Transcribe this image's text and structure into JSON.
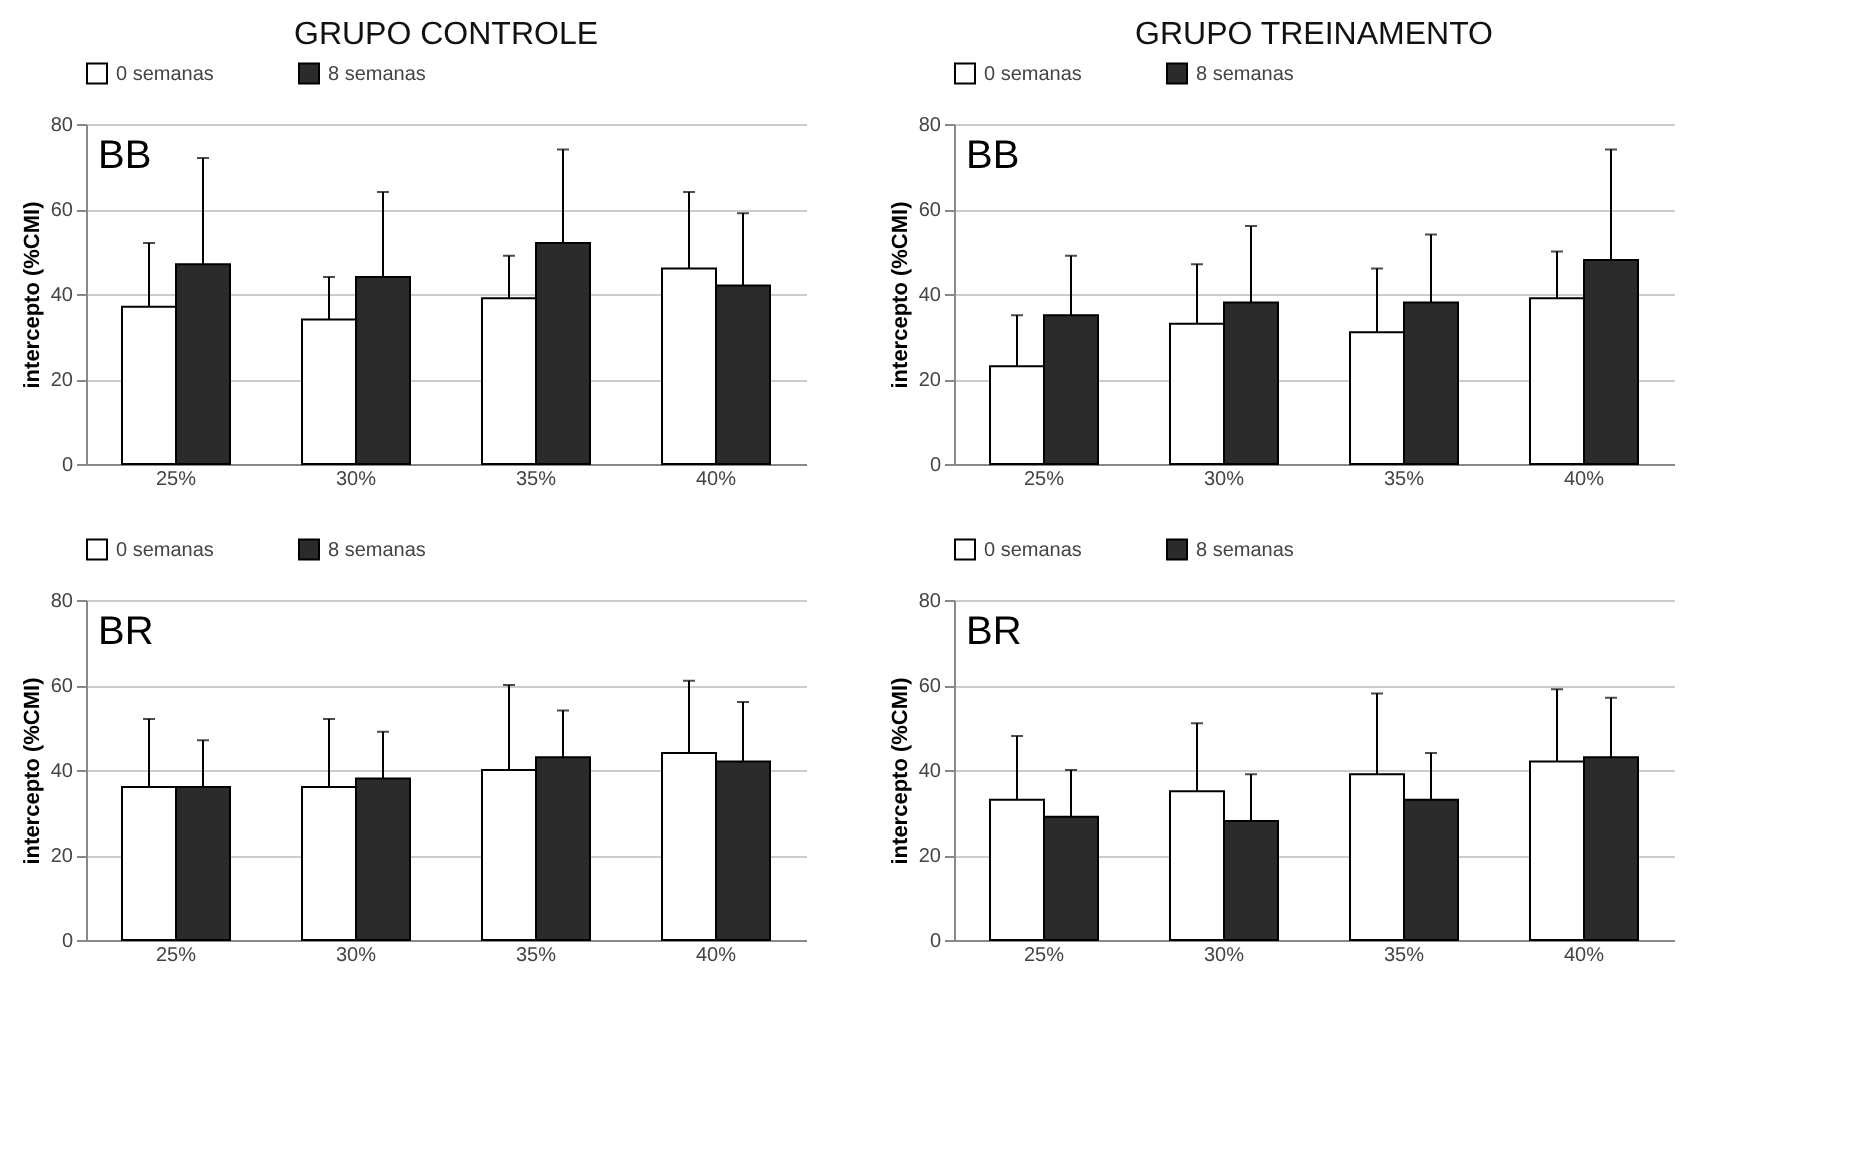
{
  "chart_data": [
    {
      "type": "bar",
      "title": "GRUPO CONTROLE",
      "ylabel": "intercepto (%CMI)",
      "annotations": [
        "BB"
      ],
      "categories": [
        "25%",
        "30%",
        "35%",
        "40%"
      ],
      "ylim": [
        0,
        80
      ],
      "yticks": [
        0,
        20,
        40,
        60,
        80
      ],
      "grid": "y",
      "legend": "top",
      "series": [
        {
          "name": "0 semanas",
          "color": "#ffffff",
          "values": [
            37,
            34,
            39,
            46
          ],
          "errors": [
            [
              37,
              52
            ],
            [
              34,
              44
            ],
            [
              39,
              49
            ],
            [
              46,
              64
            ]
          ]
        },
        {
          "name": "8 semanas",
          "color": "#2b2b2b",
          "values": [
            47,
            44,
            52,
            42
          ],
          "errors": [
            [
              47,
              72
            ],
            [
              44,
              64
            ],
            [
              52,
              74
            ],
            [
              42,
              59
            ]
          ]
        }
      ]
    },
    {
      "type": "bar",
      "title": "GRUPO TREINAMENTO",
      "ylabel": "intercepto (%CMI)",
      "annotations": [
        "BB"
      ],
      "categories": [
        "25%",
        "30%",
        "35%",
        "40%"
      ],
      "ylim": [
        0,
        80
      ],
      "yticks": [
        0,
        20,
        40,
        60,
        80
      ],
      "grid": "y",
      "legend": "top",
      "series": [
        {
          "name": "0 semanas",
          "color": "#ffffff",
          "values": [
            23,
            33,
            31,
            39
          ],
          "errors": [
            [
              23,
              35
            ],
            [
              33,
              47
            ],
            [
              31,
              46
            ],
            [
              39,
              50
            ]
          ]
        },
        {
          "name": "8 semanas",
          "color": "#2b2b2b",
          "values": [
            35,
            38,
            38,
            48
          ],
          "errors": [
            [
              35,
              49
            ],
            [
              38,
              56
            ],
            [
              38,
              54
            ],
            [
              48,
              74
            ]
          ]
        }
      ]
    },
    {
      "type": "bar",
      "ylabel": "intercepto (%CMI)",
      "annotations": [
        "BR"
      ],
      "categories": [
        "25%",
        "30%",
        "35%",
        "40%"
      ],
      "ylim": [
        0,
        80
      ],
      "yticks": [
        0,
        20,
        40,
        60,
        80
      ],
      "grid": "y",
      "legend": "top",
      "series": [
        {
          "name": "0 semanas",
          "color": "#ffffff",
          "values": [
            36,
            36,
            40,
            44
          ],
          "errors": [
            [
              36,
              52
            ],
            [
              36,
              52
            ],
            [
              40,
              60
            ],
            [
              44,
              61
            ]
          ]
        },
        {
          "name": "8 semanas",
          "color": "#2b2b2b",
          "values": [
            36,
            38,
            43,
            42
          ],
          "errors": [
            [
              36,
              47
            ],
            [
              38,
              49
            ],
            [
              43,
              54
            ],
            [
              42,
              56
            ]
          ]
        }
      ]
    },
    {
      "type": "bar",
      "ylabel": "intercepto (%CMI)",
      "annotations": [
        "BR"
      ],
      "categories": [
        "25%",
        "30%",
        "35%",
        "40%"
      ],
      "ylim": [
        0,
        80
      ],
      "yticks": [
        0,
        20,
        40,
        60,
        80
      ],
      "grid": "y",
      "legend": "top",
      "series": [
        {
          "name": "0 semanas",
          "color": "#ffffff",
          "values": [
            33,
            35,
            39,
            42
          ],
          "errors": [
            [
              33,
              48
            ],
            [
              35,
              51
            ],
            [
              39,
              58
            ],
            [
              42,
              59
            ]
          ]
        },
        {
          "name": "8 semanas",
          "color": "#2b2b2b",
          "values": [
            29,
            28,
            33,
            43
          ],
          "errors": [
            [
              29,
              40
            ],
            [
              28,
              39
            ],
            [
              33,
              44
            ],
            [
              43,
              57
            ]
          ]
        }
      ]
    }
  ]
}
